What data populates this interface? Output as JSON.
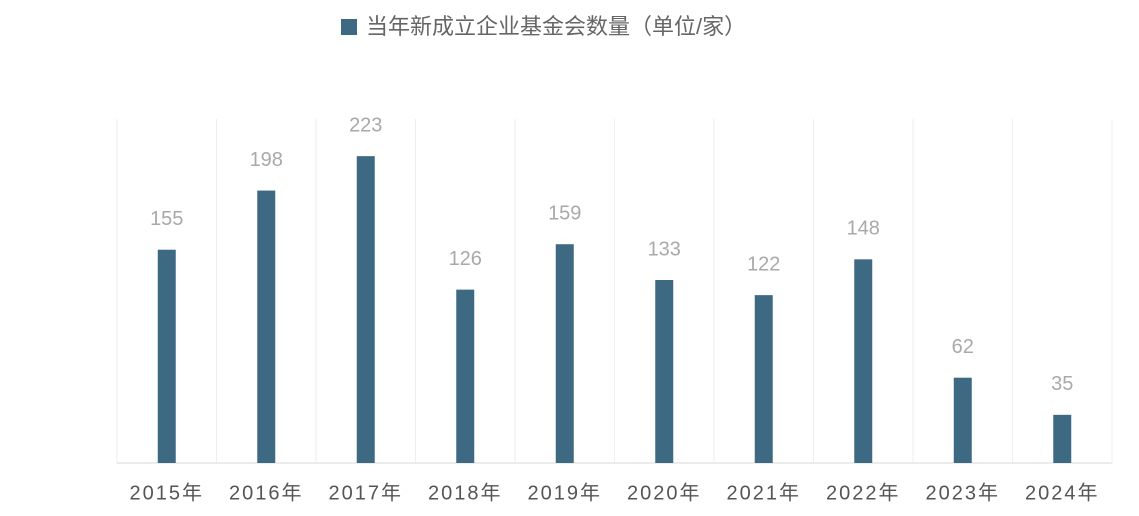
{
  "chart_data": {
    "type": "bar",
    "series": [
      {
        "name": "当年新成立企业基金会数量（单位/家）",
        "color": "#3d6a82",
        "values": [
          155,
          198,
          223,
          126,
          159,
          133,
          122,
          148,
          62,
          35
        ]
      }
    ],
    "categories": [
      "2015年",
      "2016年",
      "2017年",
      "2018年",
      "2019年",
      "2020年",
      "2021年",
      "2022年",
      "2023年",
      "2024年"
    ],
    "ylim": [
      0,
      250
    ]
  }
}
